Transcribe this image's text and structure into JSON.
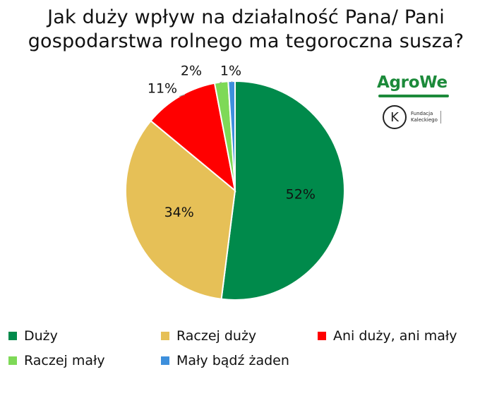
{
  "chart_data": {
    "type": "pie",
    "title": "Jak duży wpływ na działalność Pana/ Pani gospodarstwa rolnego ma tegoroczna susza?",
    "title_lines": [
      "Jak duży wpływ na działalność Pana/ Pani",
      "gospodarstwa rolnego ma tegoroczna susza?"
    ],
    "legend_position": "bottom",
    "slices": [
      {
        "name": "Duży",
        "value": 52,
        "label": "52%",
        "color": "#008a4b"
      },
      {
        "name": "Raczej duży",
        "value": 34,
        "label": "34%",
        "color": "#e6c057"
      },
      {
        "name": "Ani duży, ani mały",
        "value": 11,
        "label": "11%",
        "color": "#ff0000"
      },
      {
        "name": "Raczej mały",
        "value": 2,
        "label": "2%",
        "color": "#7ed957"
      },
      {
        "name": "Mały bądź żaden",
        "value": 1,
        "label": "1%",
        "color": "#3d8fdc"
      }
    ]
  },
  "logos": {
    "agrowe": "AgroWe",
    "fundacja_mark": "K",
    "fundacja_line1": "Fundacja",
    "fundacja_line2": "Kaleckiego"
  }
}
